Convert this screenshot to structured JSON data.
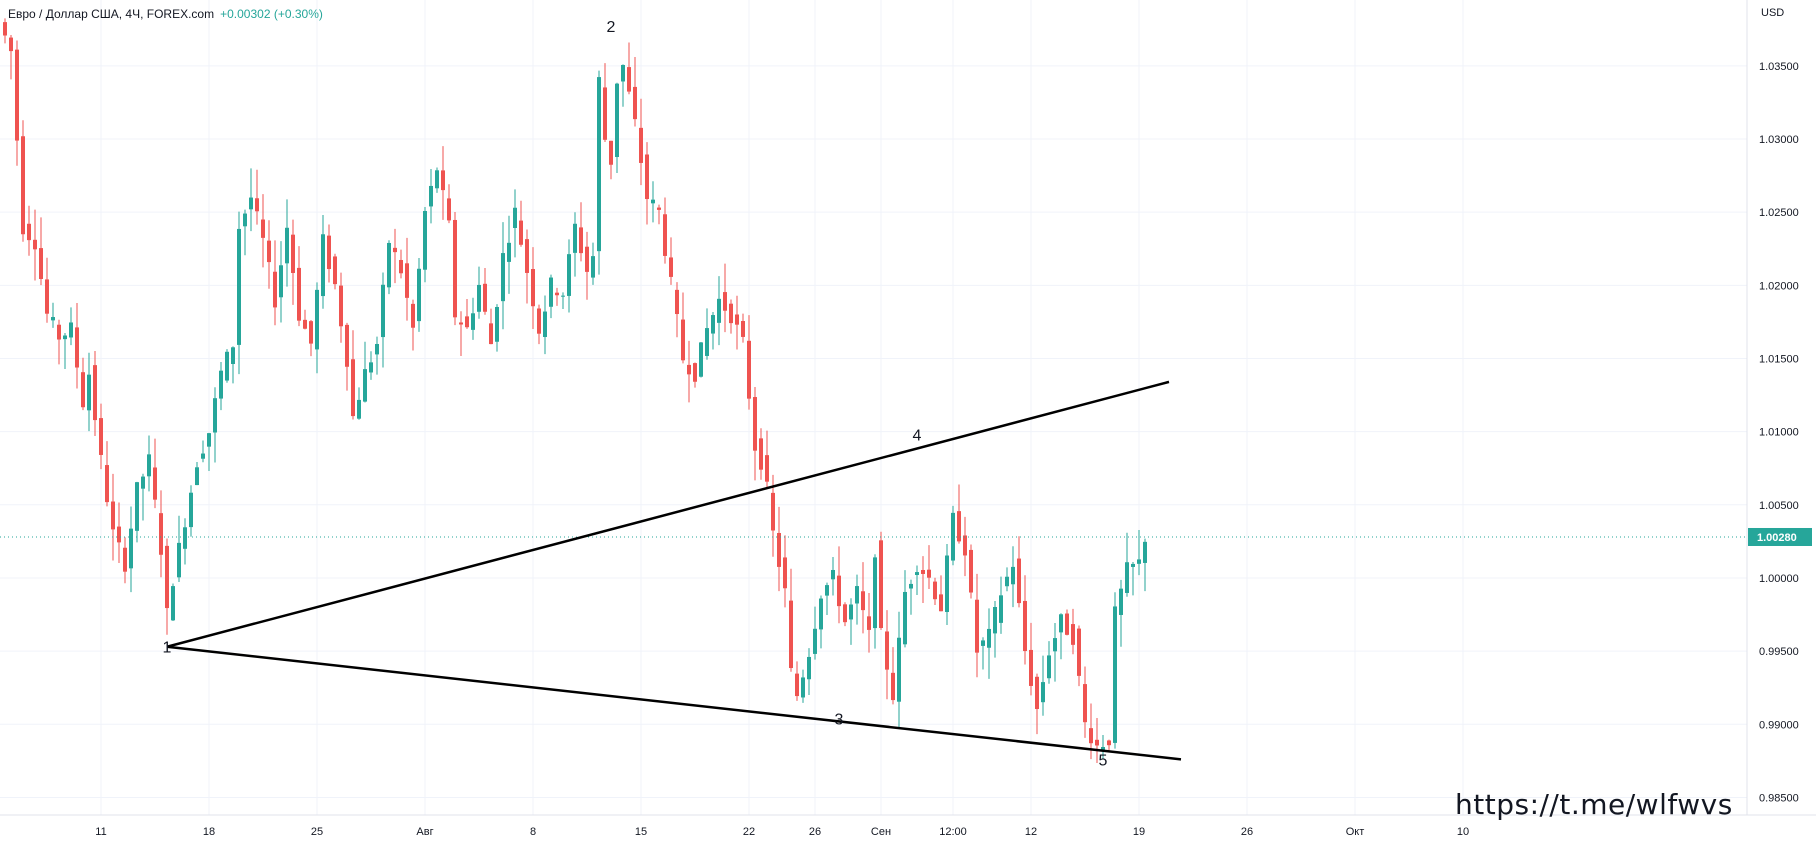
{
  "header": {
    "symbol_text": "Евро / Доллар США, 4Ч, FOREX.com",
    "change_text": "+0.00302 (+0.30%)"
  },
  "axis": {
    "currency": "USD"
  },
  "watermark": "https://t.me/wlfwvs",
  "colors": {
    "up": "#26a69a",
    "down": "#ef5350",
    "grid": "#f0f3fa",
    "current_price": "#26a69a",
    "line": "#000000"
  },
  "chart_data": {
    "type": "candlestick",
    "ylim": [
      0.9838,
      1.0395
    ],
    "y_ticks": [
      "0.98500",
      "0.99000",
      "0.99500",
      "1.00000",
      "1.00500",
      "1.01000",
      "1.01500",
      "1.02000",
      "1.02500",
      "1.03000",
      "1.03500"
    ],
    "x_ticks": [
      "11",
      "18",
      "25",
      "Авг",
      "8",
      "15",
      "22",
      "26",
      "Сен",
      "12:00",
      "12",
      "19",
      "26",
      "Окт",
      "10"
    ],
    "current_price": 1.0028,
    "current_price_label": "1.00280",
    "price_path": [
      [
        0,
        1.037
      ],
      [
        1,
        1.036
      ],
      [
        2,
        1.03
      ],
      [
        3,
        1.024
      ],
      [
        5,
        1.023
      ],
      [
        7,
        1.018
      ],
      [
        9,
        1.0165
      ],
      [
        11,
        1.017
      ],
      [
        13,
        1.012
      ],
      [
        14,
        1.014
      ],
      [
        16,
        1.008
      ],
      [
        18,
        1.003
      ],
      [
        20,
        1.001
      ],
      [
        22,
        1.006
      ],
      [
        24,
        1.008
      ],
      [
        26,
        1.002
      ],
      [
        27,
        0.9975
      ],
      [
        28,
        1.0
      ],
      [
        30,
        1.004
      ],
      [
        32,
        1.008
      ],
      [
        34,
        1.01
      ],
      [
        36,
        1.014
      ],
      [
        38,
        1.016
      ],
      [
        39,
        1.024
      ],
      [
        41,
        1.026
      ],
      [
        43,
        1.023
      ],
      [
        45,
        1.019
      ],
      [
        47,
        1.024
      ],
      [
        49,
        1.018
      ],
      [
        51,
        1.016
      ],
      [
        53,
        1.023
      ],
      [
        55,
        1.02
      ],
      [
        57,
        1.015
      ],
      [
        58,
        1.011
      ],
      [
        60,
        1.014
      ],
      [
        62,
        1.016
      ],
      [
        64,
        1.023
      ],
      [
        66,
        1.021
      ],
      [
        68,
        1.017
      ],
      [
        70,
        1.025
      ],
      [
        72,
        1.028
      ],
      [
        74,
        1.024
      ],
      [
        75,
        1.018
      ],
      [
        77,
        1.017
      ],
      [
        79,
        1.02
      ],
      [
        81,
        1.016
      ],
      [
        83,
        1.022
      ],
      [
        85,
        1.025
      ],
      [
        87,
        1.021
      ],
      [
        89,
        1.017
      ],
      [
        91,
        1.02
      ],
      [
        93,
        1.0195
      ],
      [
        95,
        1.024
      ],
      [
        97,
        1.021
      ],
      [
        98,
        1.022
      ],
      [
        99,
        1.034
      ],
      [
        100,
        1.03
      ],
      [
        101,
        1.0285
      ],
      [
        102,
        1.034
      ],
      [
        103,
        1.035
      ],
      [
        105,
        1.031
      ],
      [
        107,
        1.026
      ],
      [
        109,
        1.025
      ],
      [
        111,
        1.02
      ],
      [
        113,
        1.015
      ],
      [
        115,
        1.014
      ],
      [
        117,
        1.017
      ],
      [
        119,
        1.019
      ],
      [
        121,
        1.018
      ],
      [
        123,
        1.016
      ],
      [
        125,
        1.009
      ],
      [
        126,
        1.008
      ],
      [
        127,
        1.006
      ],
      [
        128,
        1.003
      ],
      [
        130,
        0.999
      ],
      [
        131,
        0.9935
      ],
      [
        132,
        0.992
      ],
      [
        134,
        0.995
      ],
      [
        136,
        0.999
      ],
      [
        138,
        1.0
      ],
      [
        140,
        0.997
      ],
      [
        142,
        0.999
      ],
      [
        144,
        0.996
      ],
      [
        145,
        1.002
      ],
      [
        146,
        0.996
      ],
      [
        148,
        0.992
      ],
      [
        150,
        0.999
      ],
      [
        152,
        1.001
      ],
      [
        154,
        1.0
      ],
      [
        156,
        0.998
      ],
      [
        158,
        1.004
      ],
      [
        160,
        1.002
      ],
      [
        162,
        0.995
      ],
      [
        164,
        0.996
      ],
      [
        166,
        0.999
      ],
      [
        168,
        1.001
      ],
      [
        170,
        0.995
      ],
      [
        172,
        0.991
      ],
      [
        174,
        0.995
      ],
      [
        176,
        0.997
      ],
      [
        178,
        0.996
      ],
      [
        180,
        0.99
      ],
      [
        182,
        0.9885
      ],
      [
        184,
        0.989
      ],
      [
        185,
        0.9975
      ],
      [
        187,
        1.0005
      ],
      [
        189,
        1.001
      ],
      [
        190,
        1.0028
      ]
    ],
    "annotations": [
      {
        "text": "1",
        "bar": 27,
        "price": 0.9949
      },
      {
        "text": "2",
        "bar": 101,
        "price": 1.0373
      },
      {
        "text": "3",
        "bar": 139,
        "price": 0.99
      },
      {
        "text": "4",
        "bar": 152,
        "price": 1.0094
      },
      {
        "text": "5",
        "bar": 183,
        "price": 0.9872
      }
    ],
    "trendlines": [
      {
        "from": {
          "bar": 27,
          "price": 0.9953
        },
        "to": {
          "bar": 194,
          "price": 1.0134
        }
      },
      {
        "from": {
          "bar": 27,
          "price": 0.9953
        },
        "to": {
          "bar": 196,
          "price": 0.9876
        }
      }
    ],
    "x_tick_bars": [
      16,
      34,
      52,
      70,
      88,
      106,
      124,
      135,
      146,
      158,
      171,
      189,
      207,
      225,
      243
    ]
  }
}
